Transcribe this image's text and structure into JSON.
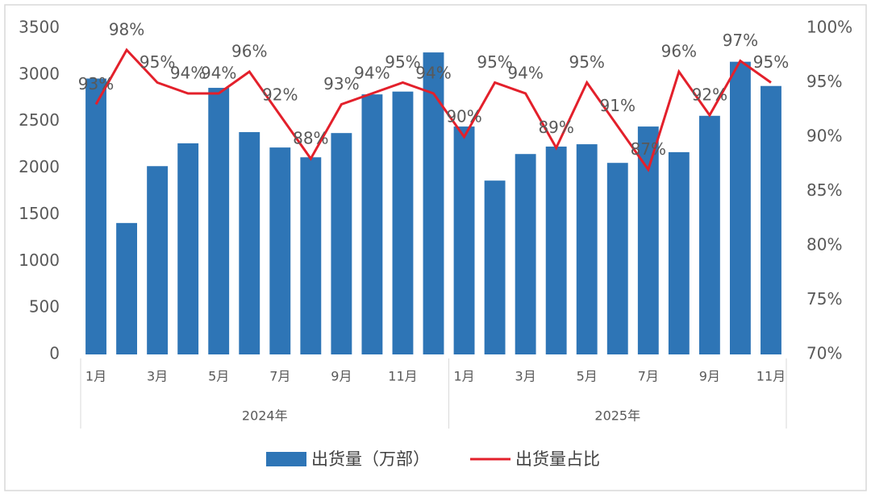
{
  "chart_data": {
    "type": "bar-line",
    "category_groups": [
      {
        "name": "2024年",
        "categories": [
          "1月",
          null,
          "3月",
          null,
          "5月",
          null,
          "7月",
          null,
          "9月",
          null,
          "11月",
          null
        ]
      },
      {
        "name": "2025年",
        "categories": [
          "1月",
          null,
          "3月",
          null,
          "5月",
          null,
          "7月",
          null,
          "9月",
          null,
          "11月"
        ]
      }
    ],
    "series": [
      {
        "name": "出货量（万部）",
        "type": "bar",
        "color": "#2e75b6",
        "values": [
          2960,
          1410,
          2020,
          2265,
          2860,
          2385,
          2220,
          2115,
          2375,
          2790,
          2820,
          3240,
          2445,
          1865,
          2150,
          2230,
          2255,
          2055,
          2445,
          2170,
          2560,
          3140,
          2880
        ]
      },
      {
        "name": "出货量占比",
        "type": "line",
        "axis": "y2",
        "color": "#e3202b",
        "values": [
          93,
          98,
          95,
          94,
          94,
          96,
          92,
          88,
          93,
          94,
          95,
          94,
          90,
          95,
          94,
          89,
          95,
          91,
          87,
          96,
          92,
          97,
          95
        ],
        "value_labels": [
          "93%",
          "98%",
          "95%",
          "94%",
          "94%",
          "96%",
          "92%",
          "88%",
          "93%",
          "94%",
          "95%",
          "94%",
          "90%",
          "95%",
          "94%",
          "89%",
          "95%",
          "91%",
          "87%",
          "96%",
          "92%",
          "97%",
          "95%"
        ]
      }
    ],
    "ylim": [
      0,
      3500
    ],
    "yticks": [
      0,
      500,
      1000,
      1500,
      2000,
      2500,
      3000,
      3500
    ],
    "y2lim": [
      70,
      100
    ],
    "y2ticks": [
      {
        "value": 70,
        "label": "70%"
      },
      {
        "value": 75,
        "label": "75%"
      },
      {
        "value": 80,
        "label": "80%"
      },
      {
        "value": 85,
        "label": "85%"
      },
      {
        "value": 90,
        "label": "90%"
      },
      {
        "value": 95,
        "label": "95%"
      },
      {
        "value": 100,
        "label": "100%"
      }
    ],
    "legend": "bottom"
  }
}
